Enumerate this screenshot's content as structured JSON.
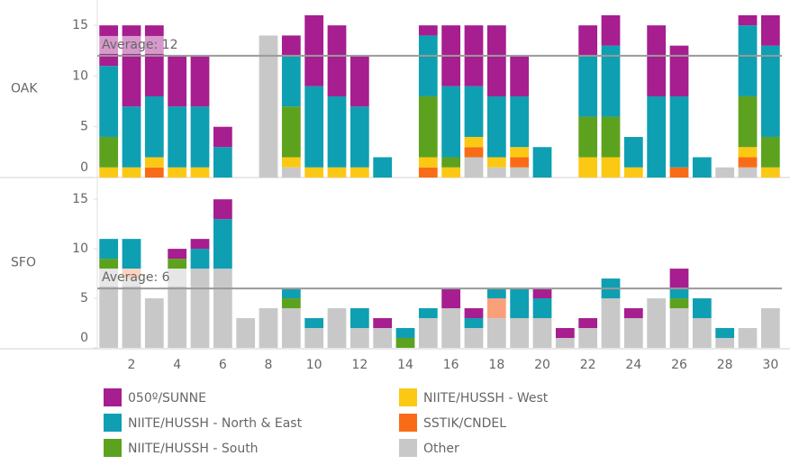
{
  "chart_data": [
    {
      "type": "bar",
      "stacked": true,
      "row_label": "OAK",
      "x": [
        1,
        2,
        3,
        4,
        5,
        6,
        7,
        8,
        9,
        10,
        11,
        12,
        13,
        14,
        15,
        16,
        17,
        18,
        19,
        20,
        21,
        22,
        23,
        24,
        25,
        26,
        27,
        28,
        29,
        30
      ],
      "xlim": [
        0.5,
        30.5
      ],
      "ylim": [
        0,
        17.5
      ],
      "yticks": [
        0,
        5,
        10,
        15
      ],
      "reference_line": {
        "value": 12,
        "label": "Average: 12"
      },
      "series": [
        {
          "name": "Other",
          "color": "#c8c8c8",
          "values": [
            0,
            0,
            0,
            0,
            0,
            0,
            0,
            14,
            1,
            0,
            0,
            0,
            0,
            0,
            0,
            0,
            2,
            1,
            1,
            0,
            0,
            0,
            0,
            0,
            0,
            0,
            0,
            1,
            1,
            0
          ]
        },
        {
          "name": "SSTIK/CNDEL",
          "color": "#f96c17",
          "values": [
            0,
            0,
            1,
            0,
            0,
            0,
            0,
            0,
            0,
            0,
            0,
            0,
            0,
            0,
            1,
            0,
            1,
            0,
            1,
            0,
            0,
            0,
            0,
            0,
            0,
            1,
            0,
            0,
            1,
            0
          ]
        },
        {
          "name": "NIITE/HUSSH - West",
          "color": "#fbc914",
          "values": [
            1,
            1,
            1,
            1,
            1,
            0,
            0,
            0,
            1,
            1,
            1,
            1,
            0,
            0,
            1,
            1,
            1,
            1,
            1,
            0,
            0,
            2,
            2,
            1,
            0,
            0,
            0,
            0,
            1,
            1
          ]
        },
        {
          "name": "NIITE/HUSSH - South",
          "color": "#5da21f",
          "values": [
            3,
            0,
            0,
            0,
            0,
            0,
            0,
            0,
            5,
            0,
            0,
            0,
            0,
            0,
            6,
            1,
            0,
            0,
            0,
            0,
            0,
            4,
            4,
            0,
            0,
            0,
            0,
            0,
            5,
            3
          ]
        },
        {
          "name": "NIITE/HUSSH - North & East",
          "color": "#0e9fb2",
          "values": [
            7,
            6,
            6,
            6,
            6,
            3,
            0,
            0,
            5,
            8,
            7,
            6,
            2,
            0,
            6,
            7,
            5,
            6,
            5,
            3,
            0,
            6,
            7,
            3,
            8,
            7,
            2,
            0,
            7,
            9
          ]
        },
        {
          "name": "050º/SUNNE",
          "color": "#a61e8f",
          "values": [
            4,
            8,
            7,
            5,
            5,
            2,
            0,
            0,
            2,
            7,
            7,
            5,
            0,
            0,
            1,
            6,
            6,
            7,
            4,
            0,
            0,
            3,
            3,
            0,
            7,
            5,
            0,
            0,
            1,
            3
          ]
        }
      ]
    },
    {
      "type": "bar",
      "stacked": true,
      "row_label": "SFO",
      "x": [
        1,
        2,
        3,
        4,
        5,
        6,
        7,
        8,
        9,
        10,
        11,
        12,
        13,
        14,
        15,
        16,
        17,
        18,
        19,
        20,
        21,
        22,
        23,
        24,
        25,
        26,
        27,
        28,
        29,
        30
      ],
      "xlim": [
        0.5,
        30.5
      ],
      "ylim": [
        0,
        17.2
      ],
      "yticks": [
        0,
        5,
        10,
        15
      ],
      "xticks": [
        2,
        4,
        6,
        8,
        10,
        12,
        14,
        16,
        18,
        20,
        22,
        24,
        26,
        28,
        30
      ],
      "reference_line": {
        "value": 6,
        "label": "Average: 6"
      },
      "series": [
        {
          "name": "Other",
          "color": "#c8c8c8",
          "values": [
            8,
            7,
            5,
            8,
            8,
            8,
            3,
            4,
            4,
            2,
            4,
            2,
            2,
            0,
            3,
            4,
            2,
            3,
            3,
            3,
            1,
            2,
            5,
            3,
            5,
            4,
            3,
            1,
            2,
            4
          ]
        },
        {
          "name": "SSTIK/CNDEL",
          "color": "#f9a07a",
          "values": [
            0,
            1,
            0,
            0,
            0,
            0,
            0,
            0,
            0,
            0,
            0,
            0,
            0,
            0,
            0,
            0,
            0,
            2,
            0,
            0,
            0,
            0,
            0,
            0,
            0,
            0,
            0,
            0,
            0,
            0
          ]
        },
        {
          "name": "NIITE/HUSSH - West",
          "color": "#fbc914",
          "values": [
            0,
            0,
            0,
            0,
            0,
            0,
            0,
            0,
            0,
            0,
            0,
            0,
            0,
            0,
            0,
            0,
            0,
            0,
            0,
            0,
            0,
            0,
            0,
            0,
            0,
            0,
            0,
            0,
            0,
            0
          ]
        },
        {
          "name": "NIITE/HUSSH - South",
          "color": "#5da21f",
          "values": [
            1,
            0,
            0,
            1,
            0,
            0,
            0,
            0,
            1,
            0,
            0,
            0,
            0,
            1,
            0,
            0,
            0,
            0,
            0,
            0,
            0,
            0,
            0,
            0,
            0,
            1,
            0,
            0,
            0,
            0
          ]
        },
        {
          "name": "NIITE/HUSSH - North & East",
          "color": "#0e9fb2",
          "values": [
            2,
            3,
            0,
            0,
            2,
            5,
            0,
            0,
            1,
            1,
            0,
            2,
            0,
            1,
            1,
            0,
            1,
            1,
            3,
            2,
            0,
            0,
            2,
            0,
            0,
            1,
            2,
            1,
            0,
            0
          ]
        },
        {
          "name": "050º/SUNNE",
          "color": "#a61e8f",
          "values": [
            0,
            0,
            0,
            1,
            1,
            2,
            0,
            0,
            0,
            0,
            0,
            0,
            1,
            0,
            0,
            2,
            1,
            0,
            0,
            1,
            1,
            1,
            0,
            1,
            0,
            2,
            0,
            0,
            0,
            0
          ]
        }
      ]
    }
  ]
}
